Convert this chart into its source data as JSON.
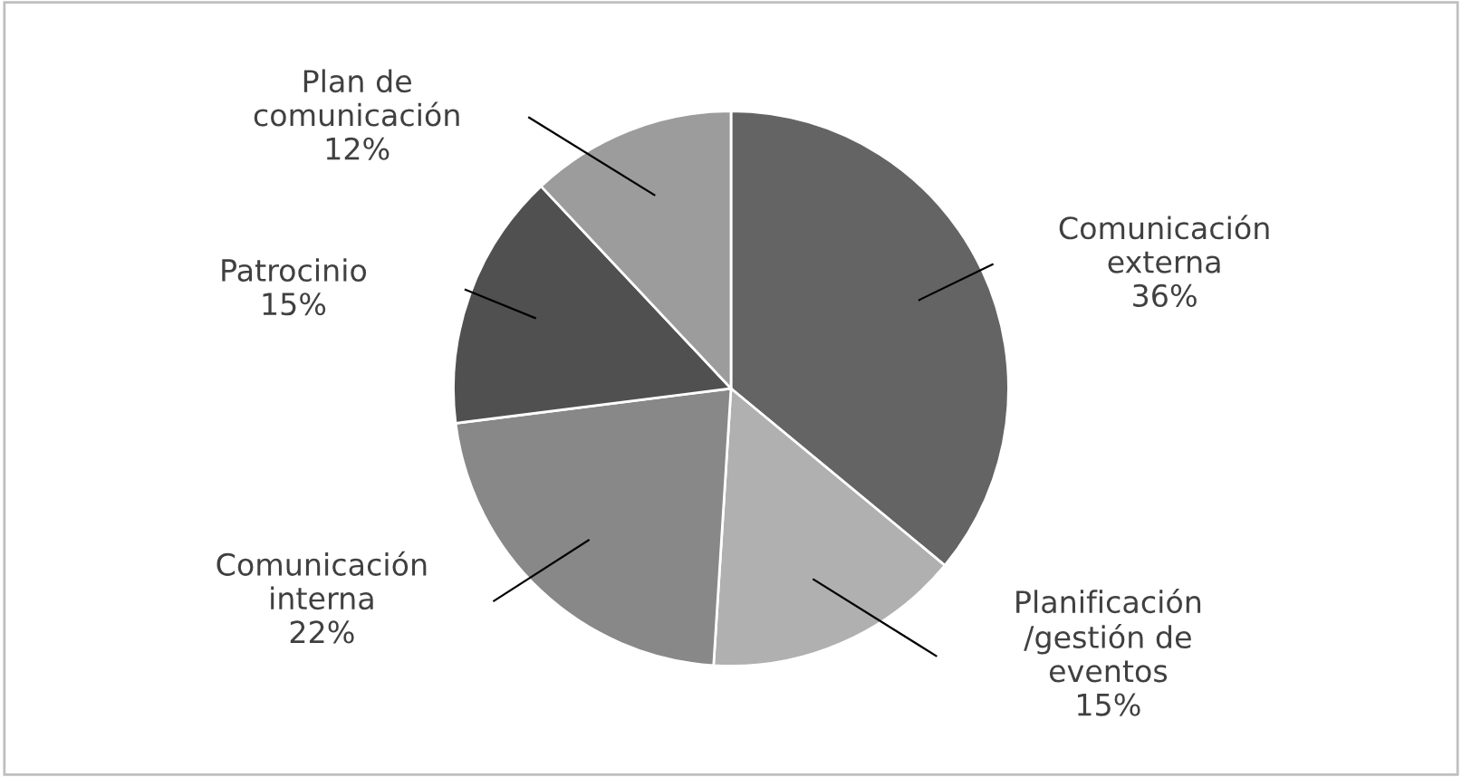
{
  "chart_data": {
    "type": "pie",
    "categories": [
      "Comunicación\nexterna",
      "Planificación\n/gestión de\neventos",
      "Comunicación\ninterna",
      "Patrocinio",
      "Plan de\ncomunicación"
    ],
    "values": [
      36,
      15,
      22,
      15,
      12
    ],
    "value_labels": [
      "36%",
      "15%",
      "22%",
      "15%",
      "12%"
    ],
    "colors": [
      "#646464",
      "#b0b0b0",
      "#888888",
      "#505050",
      "#9c9c9c"
    ]
  }
}
